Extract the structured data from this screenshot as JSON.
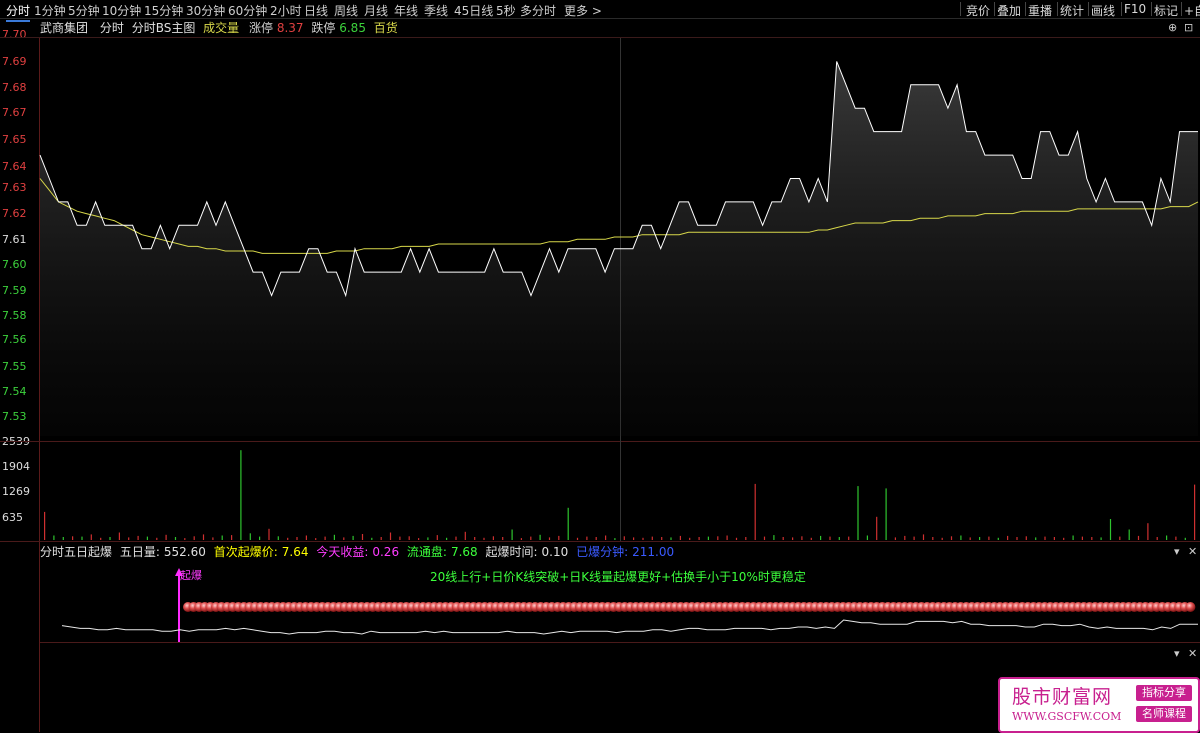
{
  "toolbar": {
    "timeframes": [
      "分时",
      "1分钟",
      "5分钟",
      "10分钟",
      "15分钟",
      "30分钟",
      "60分钟",
      "2小时",
      "日线",
      "周线",
      "月线",
      "年线",
      "季线",
      "45日线",
      "5秒",
      "多分时",
      "更多 >"
    ],
    "active_index": 0,
    "right_tools": [
      "竞价",
      "叠加",
      "重播",
      "统计",
      "画线",
      "F10",
      "标记",
      "+自"
    ]
  },
  "info": {
    "stock_name": "武商集团",
    "mode1": "分时",
    "mode2": "分时BS主图",
    "volume_label": "成交量",
    "limit_up_label": "涨停",
    "limit_up": "8.37",
    "limit_down_label": "跌停",
    "limit_down": "6.85",
    "sector": "百货"
  },
  "price_axis": {
    "labels": [
      "7.70",
      "7.69",
      "7.68",
      "7.67",
      "7.65",
      "7.64",
      "7.63",
      "7.62",
      "7.61",
      "7.60",
      "7.59",
      "7.58",
      "7.56",
      "7.55",
      "7.54",
      "7.53"
    ],
    "label_colors": [
      "#e04040",
      "#e04040",
      "#e04040",
      "#e04040",
      "#e04040",
      "#e04040",
      "#e04040",
      "#e04040",
      "#dddddd",
      "#3cd23c",
      "#3cd23c",
      "#3cd23c",
      "#3cd23c",
      "#3cd23c",
      "#3cd23c",
      "#3cd23c"
    ]
  },
  "volume_axis": {
    "labels": [
      "2539",
      "1904",
      "1269",
      "635"
    ]
  },
  "chart_data": {
    "type": "line",
    "series": [
      {
        "values": [
          7.65,
          7.64,
          7.63,
          7.63,
          7.62,
          7.62,
          7.63,
          7.62,
          7.62,
          7.62,
          7.62,
          7.61,
          7.61,
          7.62,
          7.61,
          7.62,
          7.62,
          7.62,
          7.63,
          7.62,
          7.63,
          7.62,
          7.61,
          7.6,
          7.6,
          7.59,
          7.6,
          7.6,
          7.6,
          7.61,
          7.61,
          7.6,
          7.6,
          7.59,
          7.61,
          7.6,
          7.6,
          7.6,
          7.6,
          7.6,
          7.61,
          7.6,
          7.61,
          7.6,
          7.6,
          7.6,
          7.6,
          7.6,
          7.6,
          7.61,
          7.6,
          7.6,
          7.6,
          7.59,
          7.6,
          7.61,
          7.6,
          7.61,
          7.61,
          7.61,
          7.61,
          7.6,
          7.61,
          7.61,
          7.61,
          7.62,
          7.62,
          7.61,
          7.62,
          7.63,
          7.63,
          7.62,
          7.62,
          7.62,
          7.63,
          7.63,
          7.63,
          7.63,
          7.62,
          7.63,
          7.63,
          7.64,
          7.64,
          7.63,
          7.64,
          7.63,
          7.69,
          7.68,
          7.67,
          7.67,
          7.66,
          7.66,
          7.66,
          7.66,
          7.68,
          7.68,
          7.68,
          7.68,
          7.67,
          7.68,
          7.66,
          7.66,
          7.65,
          7.65,
          7.65,
          7.65,
          7.64,
          7.64,
          7.66,
          7.66,
          7.65,
          7.65,
          7.66,
          7.64,
          7.63,
          7.64,
          7.63,
          7.63,
          7.63,
          7.63,
          7.62,
          7.64,
          7.63,
          7.66,
          7.66,
          7.66
        ]
      },
      {
        "values": [
          7.64,
          7.635,
          7.63,
          7.628,
          7.626,
          7.625,
          7.624,
          7.623,
          7.622,
          7.62,
          7.618,
          7.616,
          7.615,
          7.614,
          7.613,
          7.612,
          7.611,
          7.611,
          7.61,
          7.61,
          7.609,
          7.609,
          7.609,
          7.609,
          7.608,
          7.608,
          7.608,
          7.608,
          7.608,
          7.608,
          7.608,
          7.608,
          7.609,
          7.609,
          7.609,
          7.61,
          7.61,
          7.61,
          7.61,
          7.611,
          7.611,
          7.611,
          7.611,
          7.612,
          7.612,
          7.612,
          7.612,
          7.612,
          7.612,
          7.612,
          7.612,
          7.612,
          7.612,
          7.612,
          7.612,
          7.613,
          7.613,
          7.613,
          7.614,
          7.614,
          7.614,
          7.614,
          7.615,
          7.615,
          7.615,
          7.616,
          7.616,
          7.616,
          7.616,
          7.616,
          7.617,
          7.617,
          7.617,
          7.617,
          7.617,
          7.617,
          7.617,
          7.617,
          7.617,
          7.617,
          7.617,
          7.617,
          7.617,
          7.617,
          7.618,
          7.618,
          7.619,
          7.62,
          7.621,
          7.621,
          7.621,
          7.621,
          7.622,
          7.622,
          7.622,
          7.623,
          7.623,
          7.623,
          7.624,
          7.624,
          7.624,
          7.624,
          7.625,
          7.625,
          7.625,
          7.625,
          7.626,
          7.626,
          7.626,
          7.626,
          7.626,
          7.626,
          7.627,
          7.627,
          7.627,
          7.627,
          7.627,
          7.627,
          7.627,
          7.627,
          7.627,
          7.627,
          7.628,
          7.628,
          7.628,
          7.63
        ]
      }
    ],
    "volume": [
      750,
      120,
      80,
      100,
      90,
      150,
      60,
      80,
      200,
      70,
      110,
      90,
      60,
      140,
      80,
      50,
      100,
      150,
      70,
      120,
      130,
      2400,
      180,
      90,
      300,
      100,
      60,
      80,
      120,
      50,
      90,
      140,
      70,
      110,
      160,
      60,
      80,
      200,
      90,
      100,
      50,
      70,
      130,
      60,
      90,
      220,
      80,
      60,
      100,
      80,
      280,
      50,
      90,
      140,
      70,
      110,
      860,
      60,
      90,
      80,
      120,
      50,
      100,
      70,
      60,
      90,
      80,
      70,
      110,
      60,
      80,
      90,
      100,
      120,
      60,
      80,
      1500,
      90,
      130,
      80,
      70,
      100,
      60,
      110,
      90,
      80,
      90,
      1440,
      120,
      620,
      1380,
      70,
      110,
      90,
      150,
      80,
      60,
      100,
      120,
      70,
      80,
      90,
      60,
      110,
      80,
      100,
      70,
      90,
      80,
      60,
      120,
      90,
      80,
      70,
      560,
      90,
      280,
      110,
      450,
      80,
      120,
      90,
      60,
      1480
    ],
    "ylim": [
      7.53,
      7.7
    ]
  },
  "indicator": {
    "name": "分时五日起爆",
    "fiveday_label": "五日量:",
    "fiveday_value": "552.60",
    "first_price_label": "首次起爆价:",
    "first_price": "7.64",
    "profit_label": "今天收益:",
    "profit": "0.26",
    "float_label": "流通盘:",
    "float_value": "7.68",
    "time_label": "起爆时间:",
    "time_value": "0.10",
    "elapsed_label": "已爆分钟:",
    "elapsed_value": "211.00",
    "description": "20线上行+日价K线突破+日K线量起爆更好+估换手小于10%时更稳定",
    "signal_label": "起爆"
  },
  "watermark": {
    "title": "股市财富网",
    "url": "WWW.GSCFW.COM",
    "tag1": "指标分享",
    "tag2": "名师课程"
  }
}
